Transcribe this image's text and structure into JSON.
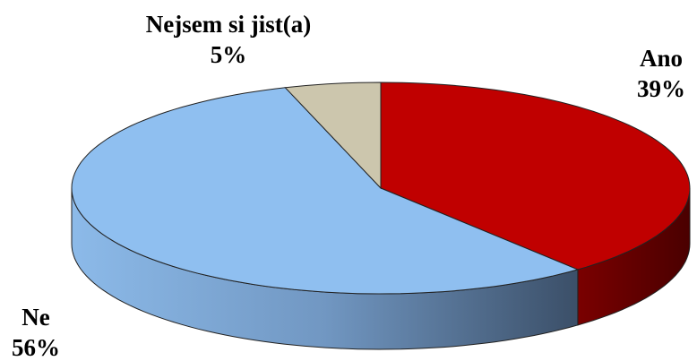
{
  "chart_data": {
    "type": "pie",
    "categories": [
      "Ano",
      "Ne",
      "Nejsem si jist(a)"
    ],
    "values": [
      39,
      56,
      5
    ],
    "value_labels": [
      "39%",
      "56%",
      "5%"
    ],
    "colors": [
      "#c00000",
      "#8fbff0",
      "#ccc6ad"
    ]
  }
}
